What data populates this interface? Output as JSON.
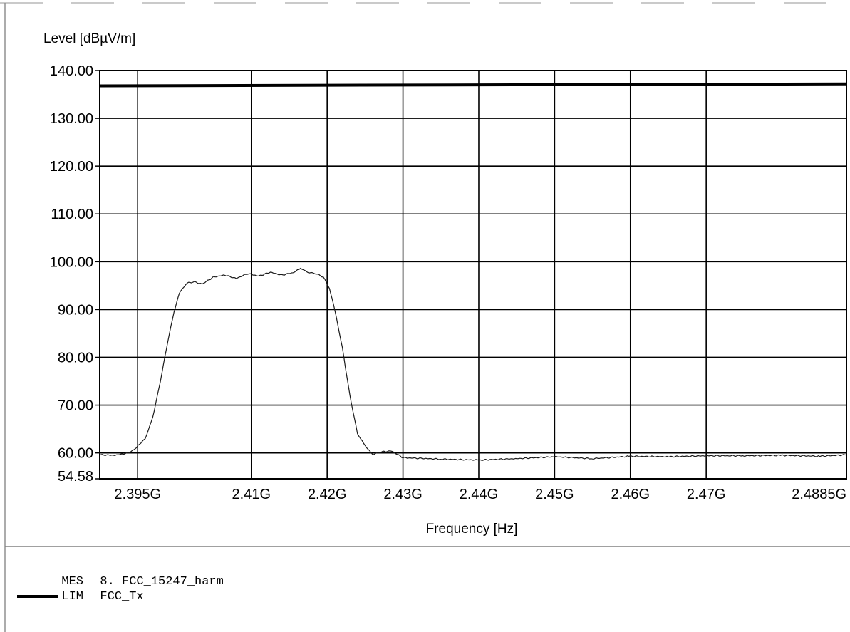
{
  "chart_data": {
    "type": "line",
    "ylabel": "Level [dBµV/m]",
    "xlabel": "Frequency [Hz]",
    "x_unit": "Hz",
    "xlim": [
      2390000000,
      2488500000
    ],
    "ylim": [
      54.58,
      140.0
    ],
    "x_ticks": [
      {
        "value": 2395000000,
        "label": "2.395G"
      },
      {
        "value": 2410000000,
        "label": "2.41G"
      },
      {
        "value": 2420000000,
        "label": "2.42G"
      },
      {
        "value": 2430000000,
        "label": "2.43G"
      },
      {
        "value": 2440000000,
        "label": "2.44G"
      },
      {
        "value": 2450000000,
        "label": "2.45G"
      },
      {
        "value": 2460000000,
        "label": "2.46G"
      },
      {
        "value": 2470000000,
        "label": "2.47G"
      },
      {
        "value": 2488500000,
        "label": "2.4885G"
      }
    ],
    "y_ticks": [
      {
        "value": 140.0,
        "label": "140.00"
      },
      {
        "value": 130.0,
        "label": "130.00"
      },
      {
        "value": 120.0,
        "label": "120.00"
      },
      {
        "value": 110.0,
        "label": "110.00"
      },
      {
        "value": 100.0,
        "label": "100.00"
      },
      {
        "value": 90.0,
        "label": "90.00"
      },
      {
        "value": 80.0,
        "label": "80.00"
      },
      {
        "value": 70.0,
        "label": "70.00"
      },
      {
        "value": 60.0,
        "label": "60.00"
      },
      {
        "value": 54.58,
        "label": "54.58"
      }
    ],
    "grid": true,
    "series": [
      {
        "name": "MES",
        "legend_text": "8. FCC_15247_harm",
        "color": "#1a1a1a",
        "style": "thin",
        "x": [
          2390000000,
          2392000000,
          2393500000,
          2394500000,
          2395200000,
          2396000000,
          2397000000,
          2398000000,
          2399000000,
          2399800000,
          2400500000,
          2401500000,
          2402500000,
          2403500000,
          2405000000,
          2406500000,
          2408000000,
          2409500000,
          2411000000,
          2412500000,
          2414000000,
          2415500000,
          2416500000,
          2417500000,
          2418500000,
          2419500000,
          2420300000,
          2421000000,
          2422000000,
          2423000000,
          2424000000,
          2425000000,
          2426000000,
          2427000000,
          2428500000,
          2430000000,
          2435000000,
          2440000000,
          2445000000,
          2450000000,
          2455000000,
          2460000000,
          2465000000,
          2470000000,
          2475000000,
          2480000000,
          2485000000,
          2488500000
        ],
        "y": [
          59.6,
          59.5,
          59.9,
          60.6,
          61.8,
          62.9,
          67.5,
          75.0,
          83.5,
          89.5,
          93.5,
          95.5,
          95.8,
          95.3,
          96.8,
          97.2,
          96.5,
          97.5,
          97.0,
          97.8,
          97.2,
          97.7,
          98.6,
          97.8,
          97.5,
          96.8,
          94.5,
          90.0,
          82.0,
          72.0,
          64.0,
          61.5,
          59.7,
          60.2,
          60.4,
          59.0,
          58.7,
          58.5,
          58.8,
          59.2,
          58.8,
          59.3,
          59.2,
          59.4,
          59.4,
          59.5,
          59.3,
          59.6
        ]
      },
      {
        "name": "LIM",
        "legend_text": "FCC_Tx",
        "color": "#000000",
        "style": "thick",
        "x": [
          2390000000,
          2488500000
        ],
        "y": [
          136.8,
          137.2
        ]
      }
    ],
    "legend_position": "below plot, left"
  }
}
